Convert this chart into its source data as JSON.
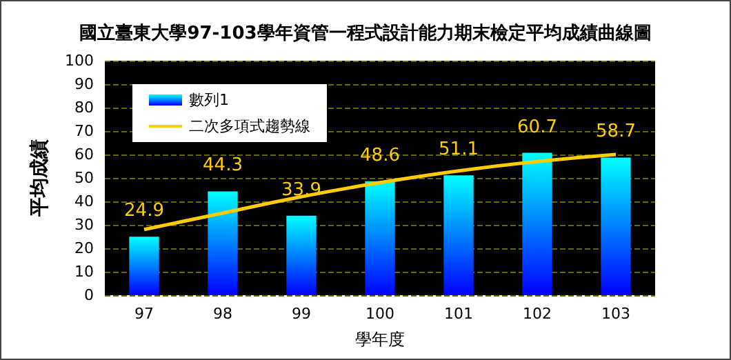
{
  "chart_data": {
    "type": "bar",
    "title": "國立臺東大學97-103學年資管一程式設計能力期末檢定平均成績曲線圖",
    "xlabel": "學年度",
    "ylabel": "平均成績",
    "categories": [
      "97",
      "98",
      "99",
      "100",
      "101",
      "102",
      "103"
    ],
    "series": [
      {
        "name": "數列1",
        "color": "#00ffff",
        "values": [
          24.9,
          44.3,
          33.9,
          48.6,
          51.1,
          60.7,
          58.7
        ],
        "data_labels": true
      },
      {
        "name": "二次多項式趨勢線",
        "type": "line",
        "color": "#ffcc00",
        "marker": "none",
        "values": [
          28,
          35,
          42,
          48,
          53,
          57,
          60
        ]
      }
    ],
    "ylim": [
      0,
      100
    ],
    "yticks": [
      0,
      10,
      20,
      30,
      40,
      50,
      60,
      70,
      80,
      90,
      100
    ],
    "grid": "y",
    "legend": "top left"
  }
}
